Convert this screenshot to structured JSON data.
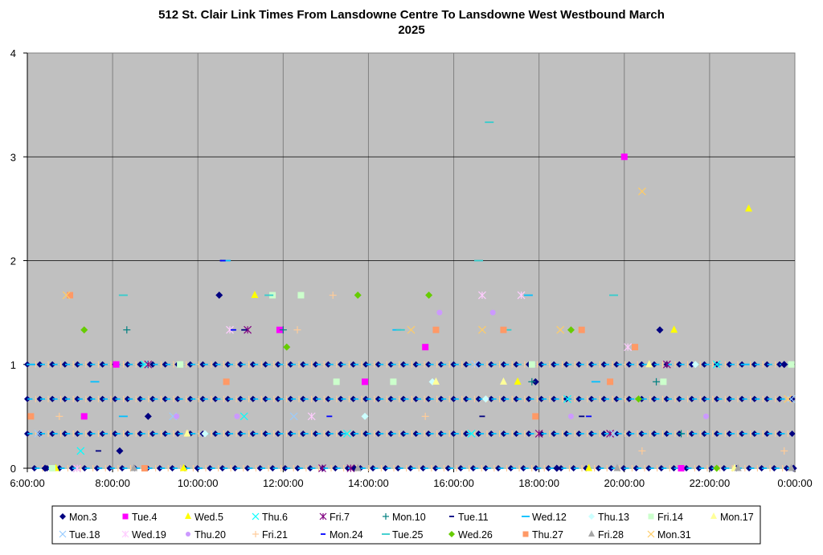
{
  "chart_data": {
    "type": "scatter",
    "title": "512 St. Clair Link Times From Lansdowne Centre To Lansdowne West Westbound March",
    "subtitle": "2025",
    "xlabel": "",
    "ylabel": "",
    "xlim": [
      "6:00:00",
      "0:00:00"
    ],
    "ylim": [
      0,
      4
    ],
    "x_ticks": [
      "6:00:00",
      "8:00:00",
      "10:00:00",
      "12:00:00",
      "14:00:00",
      "16:00:00",
      "18:00:00",
      "20:00:00",
      "22:00:00",
      "0:00:00"
    ],
    "y_ticks": [
      "0",
      "1",
      "2",
      "3",
      "4"
    ],
    "grid": true,
    "plot_background": "#c0c0c0",
    "legend_position": "bottom",
    "series": [
      {
        "name": "Mon.3",
        "marker": "diamond",
        "color": "#000080",
        "points": [
          [
            "6:25",
            0
          ],
          [
            "8:10",
            0.167
          ],
          [
            "8:50",
            0.5
          ],
          [
            "10:30",
            1.667
          ],
          [
            "13:40",
            0
          ],
          [
            "17:55",
            0.833
          ],
          [
            "18:25",
            0
          ],
          [
            "20:50",
            1.333
          ],
          [
            "23:45",
            1
          ],
          [
            "23:58",
            0
          ]
        ]
      },
      {
        "name": "Tue.4",
        "marker": "square",
        "color": "#ff00ff",
        "points": [
          [
            "7:20",
            0.5
          ],
          [
            "8:05",
            1
          ],
          [
            "11:55",
            1.333
          ],
          [
            "13:55",
            0.833
          ],
          [
            "15:20",
            1.167
          ],
          [
            "20:00",
            3
          ],
          [
            "21:20",
            0
          ]
        ]
      },
      {
        "name": "Wed.5",
        "marker": "triangle",
        "color": "#ffff00",
        "points": [
          [
            "6:40",
            0
          ],
          [
            "9:40",
            0
          ],
          [
            "11:20",
            1.667
          ],
          [
            "17:30",
            0.833
          ],
          [
            "19:10",
            0
          ],
          [
            "21:10",
            1.333
          ],
          [
            "22:55",
            2.5
          ]
        ]
      },
      {
        "name": "Thu.6",
        "marker": "x",
        "color": "#00ffff",
        "points": [
          [
            "7:15",
            0.167
          ],
          [
            "8:45",
            1
          ],
          [
            "11:05",
            0.5
          ],
          [
            "13:30",
            0.333
          ],
          [
            "16:25",
            0.333
          ],
          [
            "18:40",
            0.667
          ],
          [
            "22:10",
            1
          ]
        ]
      },
      {
        "name": "Fri.7",
        "marker": "star",
        "color": "#800080",
        "points": [
          [
            "7:10",
            0
          ],
          [
            "8:50",
            1
          ],
          [
            "11:10",
            1.333
          ],
          [
            "12:55",
            0
          ],
          [
            "13:35",
            0
          ],
          [
            "18:00",
            0.333
          ],
          [
            "19:40",
            0.333
          ],
          [
            "21:00",
            1
          ]
        ]
      },
      {
        "name": "Mon.10",
        "marker": "plus",
        "color": "#008080",
        "points": [
          [
            "8:20",
            1.333
          ],
          [
            "12:00",
            1.333
          ],
          [
            "17:50",
            0.833
          ],
          [
            "20:45",
            0.833
          ],
          [
            "21:20",
            0.333
          ]
        ]
      },
      {
        "name": "Tue.11",
        "marker": "dash",
        "color": "#000080",
        "points": [
          [
            "7:40",
            0.167
          ],
          [
            "10:35",
            2
          ],
          [
            "11:05",
            1.333
          ],
          [
            "16:40",
            0.5
          ],
          [
            "19:00",
            0.5
          ]
        ]
      },
      {
        "name": "Wed.12",
        "marker": "longdash",
        "color": "#00bfff",
        "points": [
          [
            "6:05",
            1
          ],
          [
            "7:35",
            0.833
          ],
          [
            "8:15",
            0.5
          ],
          [
            "10:40",
            2
          ],
          [
            "14:40",
            1.333
          ],
          [
            "17:45",
            1.667
          ],
          [
            "19:20",
            0.833
          ],
          [
            "22:50",
            1
          ]
        ]
      },
      {
        "name": "Thu.13",
        "marker": "diamond",
        "color": "#ccffff",
        "points": [
          [
            "10:10",
            0.333
          ],
          [
            "13:55",
            0.5
          ],
          [
            "15:30",
            0.833
          ],
          [
            "16:45",
            0.667
          ],
          [
            "21:40",
            1
          ]
        ]
      },
      {
        "name": "Fri.14",
        "marker": "square",
        "color": "#ccffcc",
        "points": [
          [
            "6:35",
            0
          ],
          [
            "9:35",
            1
          ],
          [
            "11:45",
            1.667
          ],
          [
            "12:25",
            1.667
          ],
          [
            "13:15",
            0.833
          ],
          [
            "14:35",
            0.833
          ],
          [
            "17:50",
            1
          ],
          [
            "20:55",
            0.833
          ],
          [
            "23:55",
            1
          ]
        ]
      },
      {
        "name": "Mon.17",
        "marker": "triangle",
        "color": "#ffff99",
        "points": [
          [
            "9:45",
            0.333
          ],
          [
            "15:35",
            0.833
          ],
          [
            "17:10",
            0.833
          ],
          [
            "20:35",
            1
          ],
          [
            "22:35",
            0
          ]
        ]
      },
      {
        "name": "Tue.18",
        "marker": "x",
        "color": "#99ccff",
        "points": [
          [
            "6:15",
            0.333
          ],
          [
            "9:25",
            0.5
          ],
          [
            "12:15",
            0.5
          ],
          [
            "16:30",
            1
          ],
          [
            "19:45",
            0.333
          ],
          [
            "23:55",
            0.667
          ]
        ]
      },
      {
        "name": "Wed.19",
        "marker": "star",
        "color": "#ffccff",
        "points": [
          [
            "7:10",
            0
          ],
          [
            "10:45",
            1.333
          ],
          [
            "12:40",
            0.5
          ],
          [
            "16:40",
            1.667
          ],
          [
            "17:35",
            1.667
          ],
          [
            "20:05",
            1.167
          ]
        ]
      },
      {
        "name": "Thu.20",
        "marker": "circle",
        "color": "#cc99ff",
        "points": [
          [
            "9:30",
            0.5
          ],
          [
            "10:55",
            0.5
          ],
          [
            "15:40",
            1.5
          ],
          [
            "16:55",
            1.5
          ],
          [
            "18:45",
            0.5
          ],
          [
            "21:55",
            0.5
          ]
        ]
      },
      {
        "name": "Fri.21",
        "marker": "plus",
        "color": "#ffcc99",
        "points": [
          [
            "6:45",
            0.5
          ],
          [
            "12:20",
            1.333
          ],
          [
            "13:10",
            1.667
          ],
          [
            "15:20",
            0.5
          ],
          [
            "20:25",
            0.167
          ],
          [
            "23:45",
            0.167
          ]
        ]
      },
      {
        "name": "Mon.24",
        "marker": "dash",
        "color": "#0000ff",
        "points": [
          [
            "10:35",
            2
          ],
          [
            "10:50",
            1.333
          ],
          [
            "13:05",
            0.5
          ],
          [
            "19:10",
            0.5
          ]
        ]
      },
      {
        "name": "Tue.25",
        "marker": "longdash",
        "color": "#33cccc",
        "points": [
          [
            "8:15",
            1.667
          ],
          [
            "11:40",
            1.667
          ],
          [
            "14:45",
            1.333
          ],
          [
            "16:50",
            3.333
          ],
          [
            "16:35",
            2
          ],
          [
            "17:15",
            1.333
          ],
          [
            "19:45",
            1.667
          ]
        ]
      },
      {
        "name": "Wed.26",
        "marker": "diamond",
        "color": "#66cc00",
        "points": [
          [
            "7:20",
            1.333
          ],
          [
            "12:05",
            1.167
          ],
          [
            "13:45",
            1.667
          ],
          [
            "15:25",
            1.667
          ],
          [
            "18:45",
            1.333
          ],
          [
            "20:20",
            0.667
          ],
          [
            "22:10",
            0
          ]
        ]
      },
      {
        "name": "Thu.27",
        "marker": "square",
        "color": "#ff9966",
        "points": [
          [
            "6:05",
            0.5
          ],
          [
            "7:00",
            1.667
          ],
          [
            "8:45",
            0
          ],
          [
            "10:40",
            0.833
          ],
          [
            "15:35",
            1.333
          ],
          [
            "17:10",
            1.333
          ],
          [
            "17:55",
            0.5
          ],
          [
            "19:00",
            1.333
          ],
          [
            "20:15",
            1.167
          ],
          [
            "19:40",
            0.833
          ]
        ]
      },
      {
        "name": "Fri.28",
        "marker": "triangle",
        "color": "#a6a6a6",
        "points": [
          [
            "8:30",
            0
          ],
          [
            "13:45",
            0
          ],
          [
            "19:50",
            0
          ],
          [
            "22:40",
            0
          ],
          [
            "23:55",
            0
          ]
        ]
      },
      {
        "name": "Mon.31",
        "marker": "x",
        "color": "#ffcc66",
        "points": [
          [
            "6:55",
            1.667
          ],
          [
            "15:00",
            1.333
          ],
          [
            "16:40",
            1.333
          ],
          [
            "18:30",
            1.333
          ],
          [
            "20:25",
            2.667
          ],
          [
            "23:50",
            0.667
          ]
        ]
      }
    ],
    "bands": [
      {
        "y": 0,
        "from": "6:10",
        "to": "23:58"
      },
      {
        "y": 0.333,
        "from": "6:00",
        "to": "23:58"
      },
      {
        "y": 0.667,
        "from": "6:00",
        "to": "23:58"
      },
      {
        "y": 1,
        "from": "6:00",
        "to": "23:45"
      }
    ]
  }
}
